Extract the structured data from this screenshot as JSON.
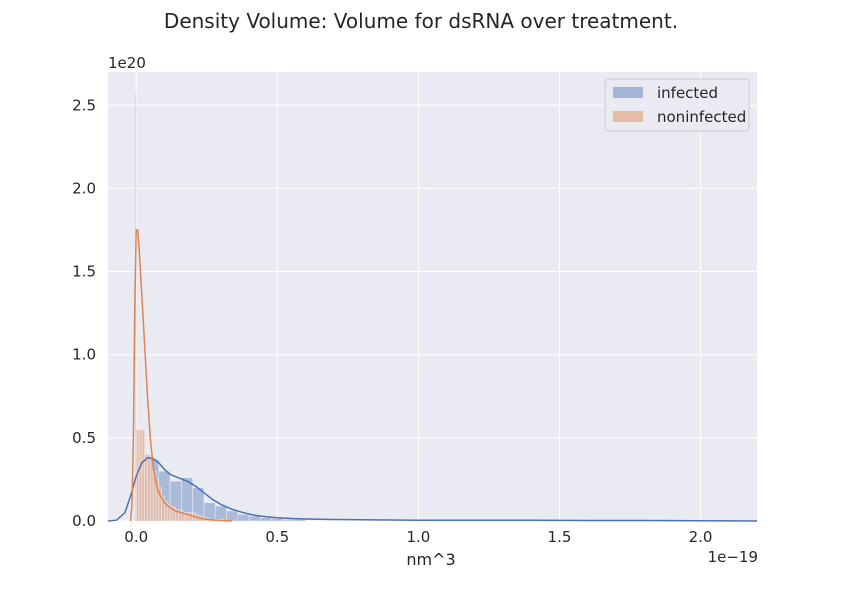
{
  "chart_data": {
    "type": "bar",
    "title": "Density Volume: Volume for dsRNA over treatment.",
    "xlabel": "nm^3",
    "ylabel": "",
    "x_offset_text": "1e−19",
    "y_offset_text": "1e20",
    "xlim": [
      -0.1,
      2.2
    ],
    "ylim": [
      0,
      2.7
    ],
    "x_ticks": [
      0.0,
      0.5,
      1.0,
      1.5,
      2.0
    ],
    "x_tick_labels": [
      "0.0",
      "0.5",
      "1.0",
      "1.5",
      "2.0"
    ],
    "y_ticks": [
      0.0,
      0.5,
      1.0,
      1.5,
      2.0,
      2.5
    ],
    "y_tick_labels": [
      "0.0",
      "0.5",
      "1.0",
      "1.5",
      "2.0",
      "2.5"
    ],
    "grid": true,
    "background": "#eaeaf2",
    "legend_position": "top-right",
    "series": [
      {
        "name": "infected",
        "color": "#4c72b0",
        "hist_color": "#a4b5d7",
        "hist_bins": [
          [
            0.0,
            0.04,
            0.27
          ],
          [
            0.04,
            0.08,
            0.37
          ],
          [
            0.08,
            0.12,
            0.3
          ],
          [
            0.12,
            0.16,
            0.24
          ],
          [
            0.16,
            0.2,
            0.26
          ],
          [
            0.2,
            0.24,
            0.2
          ],
          [
            0.24,
            0.28,
            0.11
          ],
          [
            0.28,
            0.32,
            0.09
          ],
          [
            0.32,
            0.36,
            0.06
          ],
          [
            0.36,
            0.4,
            0.04
          ],
          [
            0.4,
            0.44,
            0.03
          ],
          [
            0.44,
            0.48,
            0.02
          ],
          [
            0.48,
            0.52,
            0.015
          ],
          [
            0.52,
            0.56,
            0.01
          ],
          [
            0.56,
            0.6,
            0.01
          ]
        ],
        "kde": {
          "x": [
            -0.1,
            -0.07,
            -0.04,
            -0.02,
            0.0,
            0.02,
            0.04,
            0.06,
            0.08,
            0.1,
            0.12,
            0.15,
            0.18,
            0.21,
            0.24,
            0.27,
            0.3,
            0.34,
            0.38,
            0.42,
            0.46,
            0.5,
            0.55,
            0.6,
            0.7,
            0.8,
            0.9,
            1.0,
            1.2,
            1.4,
            1.6,
            1.8,
            2.0,
            2.2
          ],
          "y": [
            0.0,
            0.005,
            0.05,
            0.15,
            0.27,
            0.35,
            0.38,
            0.375,
            0.35,
            0.31,
            0.28,
            0.26,
            0.24,
            0.21,
            0.17,
            0.13,
            0.1,
            0.07,
            0.05,
            0.035,
            0.025,
            0.02,
            0.015,
            0.012,
            0.009,
            0.007,
            0.006,
            0.005,
            0.004,
            0.004,
            0.003,
            0.003,
            0.002,
            0.0
          ]
        }
      },
      {
        "name": "noninfected",
        "color": "#dd8452",
        "hist_color": "#e7bca6",
        "hist_bins": [
          [
            -0.004,
            0.0,
            2.57
          ],
          [
            0.0,
            0.01,
            0.55
          ],
          [
            0.01,
            0.02,
            0.55
          ],
          [
            0.02,
            0.03,
            0.55
          ],
          [
            0.03,
            0.04,
            0.4
          ],
          [
            0.04,
            0.05,
            0.4
          ],
          [
            0.05,
            0.06,
            0.35
          ],
          [
            0.06,
            0.07,
            0.3
          ],
          [
            0.07,
            0.08,
            0.25
          ],
          [
            0.08,
            0.09,
            0.2
          ],
          [
            0.09,
            0.1,
            0.15
          ],
          [
            0.1,
            0.11,
            0.12
          ],
          [
            0.11,
            0.12,
            0.1
          ],
          [
            0.12,
            0.13,
            0.09
          ],
          [
            0.13,
            0.14,
            0.08
          ],
          [
            0.14,
            0.15,
            0.07
          ],
          [
            0.15,
            0.16,
            0.07
          ],
          [
            0.16,
            0.17,
            0.06
          ],
          [
            0.17,
            0.18,
            0.05
          ],
          [
            0.18,
            0.19,
            0.05
          ],
          [
            0.19,
            0.2,
            0.05
          ],
          [
            0.2,
            0.21,
            0.05
          ],
          [
            0.21,
            0.22,
            0.04
          ],
          [
            0.22,
            0.23,
            0.03
          ],
          [
            0.23,
            0.24,
            0.03
          ],
          [
            0.24,
            0.25,
            0.02
          ],
          [
            0.25,
            0.26,
            0.02
          ],
          [
            0.26,
            0.27,
            0.01
          ],
          [
            0.27,
            0.28,
            0.01
          ],
          [
            0.28,
            0.29,
            0.01
          ],
          [
            0.29,
            0.3,
            0.01
          ],
          [
            0.3,
            0.31,
            0.01
          ]
        ],
        "kde": {
          "x": [
            -0.02,
            -0.015,
            -0.01,
            -0.005,
            0.0,
            0.005,
            0.01,
            0.02,
            0.03,
            0.04,
            0.05,
            0.06,
            0.07,
            0.08,
            0.1,
            0.12,
            0.14,
            0.16,
            0.18,
            0.2,
            0.23,
            0.26,
            0.3,
            0.34
          ],
          "y": [
            0.0,
            0.1,
            0.5,
            1.3,
            1.75,
            1.75,
            1.65,
            1.35,
            1.05,
            0.75,
            0.5,
            0.33,
            0.23,
            0.17,
            0.11,
            0.08,
            0.06,
            0.05,
            0.04,
            0.03,
            0.015,
            0.008,
            0.003,
            0.0
          ]
        }
      }
    ]
  }
}
